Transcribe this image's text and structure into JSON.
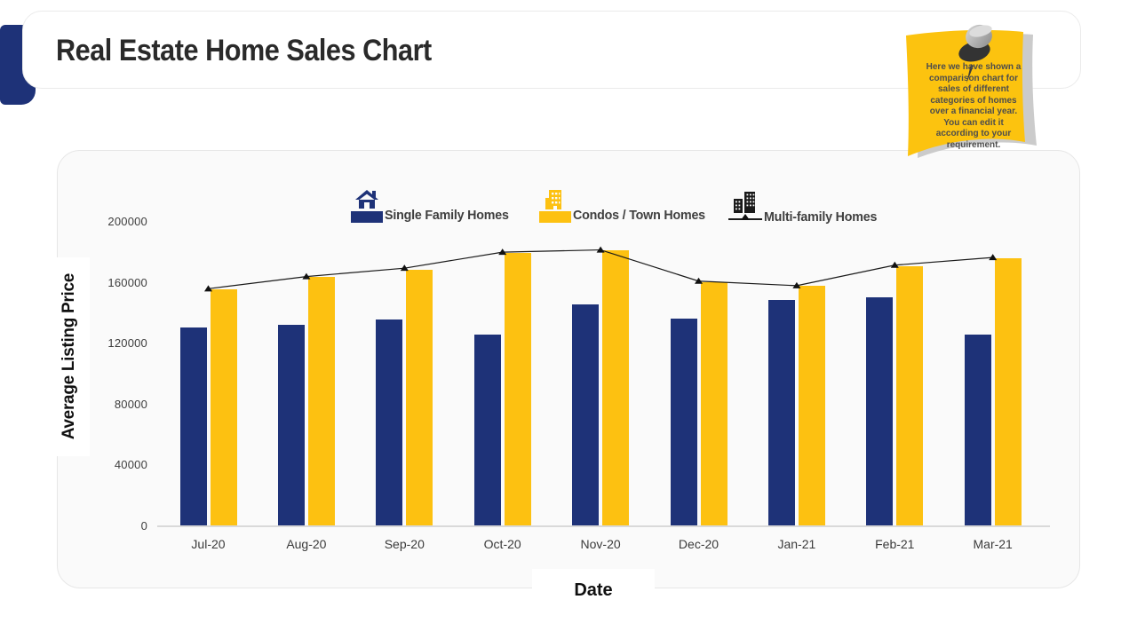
{
  "page": {
    "title": "Real Estate Home Sales Chart"
  },
  "note": {
    "text": "Here we have shown a comparison chart for sales of different categories of homes over a financial year. You can edit it according to your requirement.",
    "bg_color": "#fcc30f",
    "shadow_color": "#cbcbcb",
    "pin_icon": "pushpin-icon"
  },
  "colors": {
    "accent_blue": "#1e3278",
    "accent_yellow": "#fdc111",
    "line_black": "#1a1a1a",
    "card_bg": "#fafafa",
    "card_border": "#e7e7e7"
  },
  "icons": {
    "legend": [
      "house-icon",
      "building-icon",
      "buildings-icon"
    ]
  },
  "chart_data": {
    "type": "bar",
    "subtype": "grouped bars + line overlay",
    "title": "Real Estate Home Sales Chart",
    "xlabel": "Date",
    "ylabel": "Average Listing Price",
    "categories": [
      "Jul-20",
      "Aug-20",
      "Sep-20",
      "Oct-20",
      "Nov-20",
      "Dec-20",
      "Jan-21",
      "Feb-21",
      "Mar-21"
    ],
    "series": [
      {
        "name": "Single Family Homes",
        "type": "bar",
        "color": "#1e3278",
        "values": [
          130000,
          132000,
          135000,
          125500,
          145000,
          136000,
          148000,
          150000,
          125500
        ]
      },
      {
        "name": "Condos / Town Homes",
        "type": "bar",
        "color": "#fdc111",
        "values": [
          155000,
          163000,
          168000,
          179000,
          180500,
          160000,
          157500,
          170000,
          175500
        ]
      },
      {
        "name": "Multi-family Homes",
        "type": "line",
        "color": "#1a1a1a",
        "values": [
          155500,
          163500,
          169000,
          179500,
          181000,
          160500,
          157500,
          171000,
          176000
        ]
      }
    ],
    "ylim": [
      0,
      200000
    ],
    "yticks": [
      0,
      40000,
      80000,
      120000,
      160000,
      200000
    ],
    "grid": false,
    "legend_position": "top"
  }
}
